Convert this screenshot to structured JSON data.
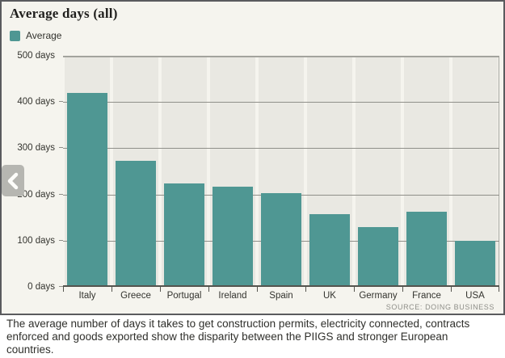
{
  "chart": {
    "title": "Average days (all)",
    "legend_label": "Average",
    "source": "SOURCE: DOING BUSINESS"
  },
  "chart_data": {
    "type": "bar",
    "title": "Average days (all)",
    "legend": [
      {
        "name": "Average",
        "color": "#4f9793"
      }
    ],
    "categories": [
      "Italy",
      "Greece",
      "Portugal",
      "Ireland",
      "Spain",
      "UK",
      "Germany",
      "France",
      "USA"
    ],
    "values": [
      420,
      272,
      224,
      217,
      203,
      157,
      129,
      163,
      100
    ],
    "xlabel": "",
    "ylabel": "days",
    "ylim": [
      0,
      500
    ],
    "yticks": [
      0,
      100,
      200,
      300,
      400,
      500
    ],
    "ytick_labels": [
      "0 days",
      "100 days",
      "200 days",
      "300 days",
      "400 days",
      "500 days"
    ],
    "grid": true,
    "legend_position": "top-left",
    "source": "SOURCE: DOING BUSINESS"
  },
  "caption": {
    "text": "The average number of days it takes to get construction permits, electricity connected, contracts enforced and goods exported show the disparity between the PIIGS and stronger European countries."
  },
  "nav": {
    "prev_icon": "chevron-left"
  },
  "colors": {
    "bar": "#4f9793",
    "panel_background": "#f5f4ee",
    "plot_band": "#e9e8e2",
    "gridline": "#8f8f89",
    "border": "#5a5b5e",
    "nav_button": "#b6b6b1"
  }
}
